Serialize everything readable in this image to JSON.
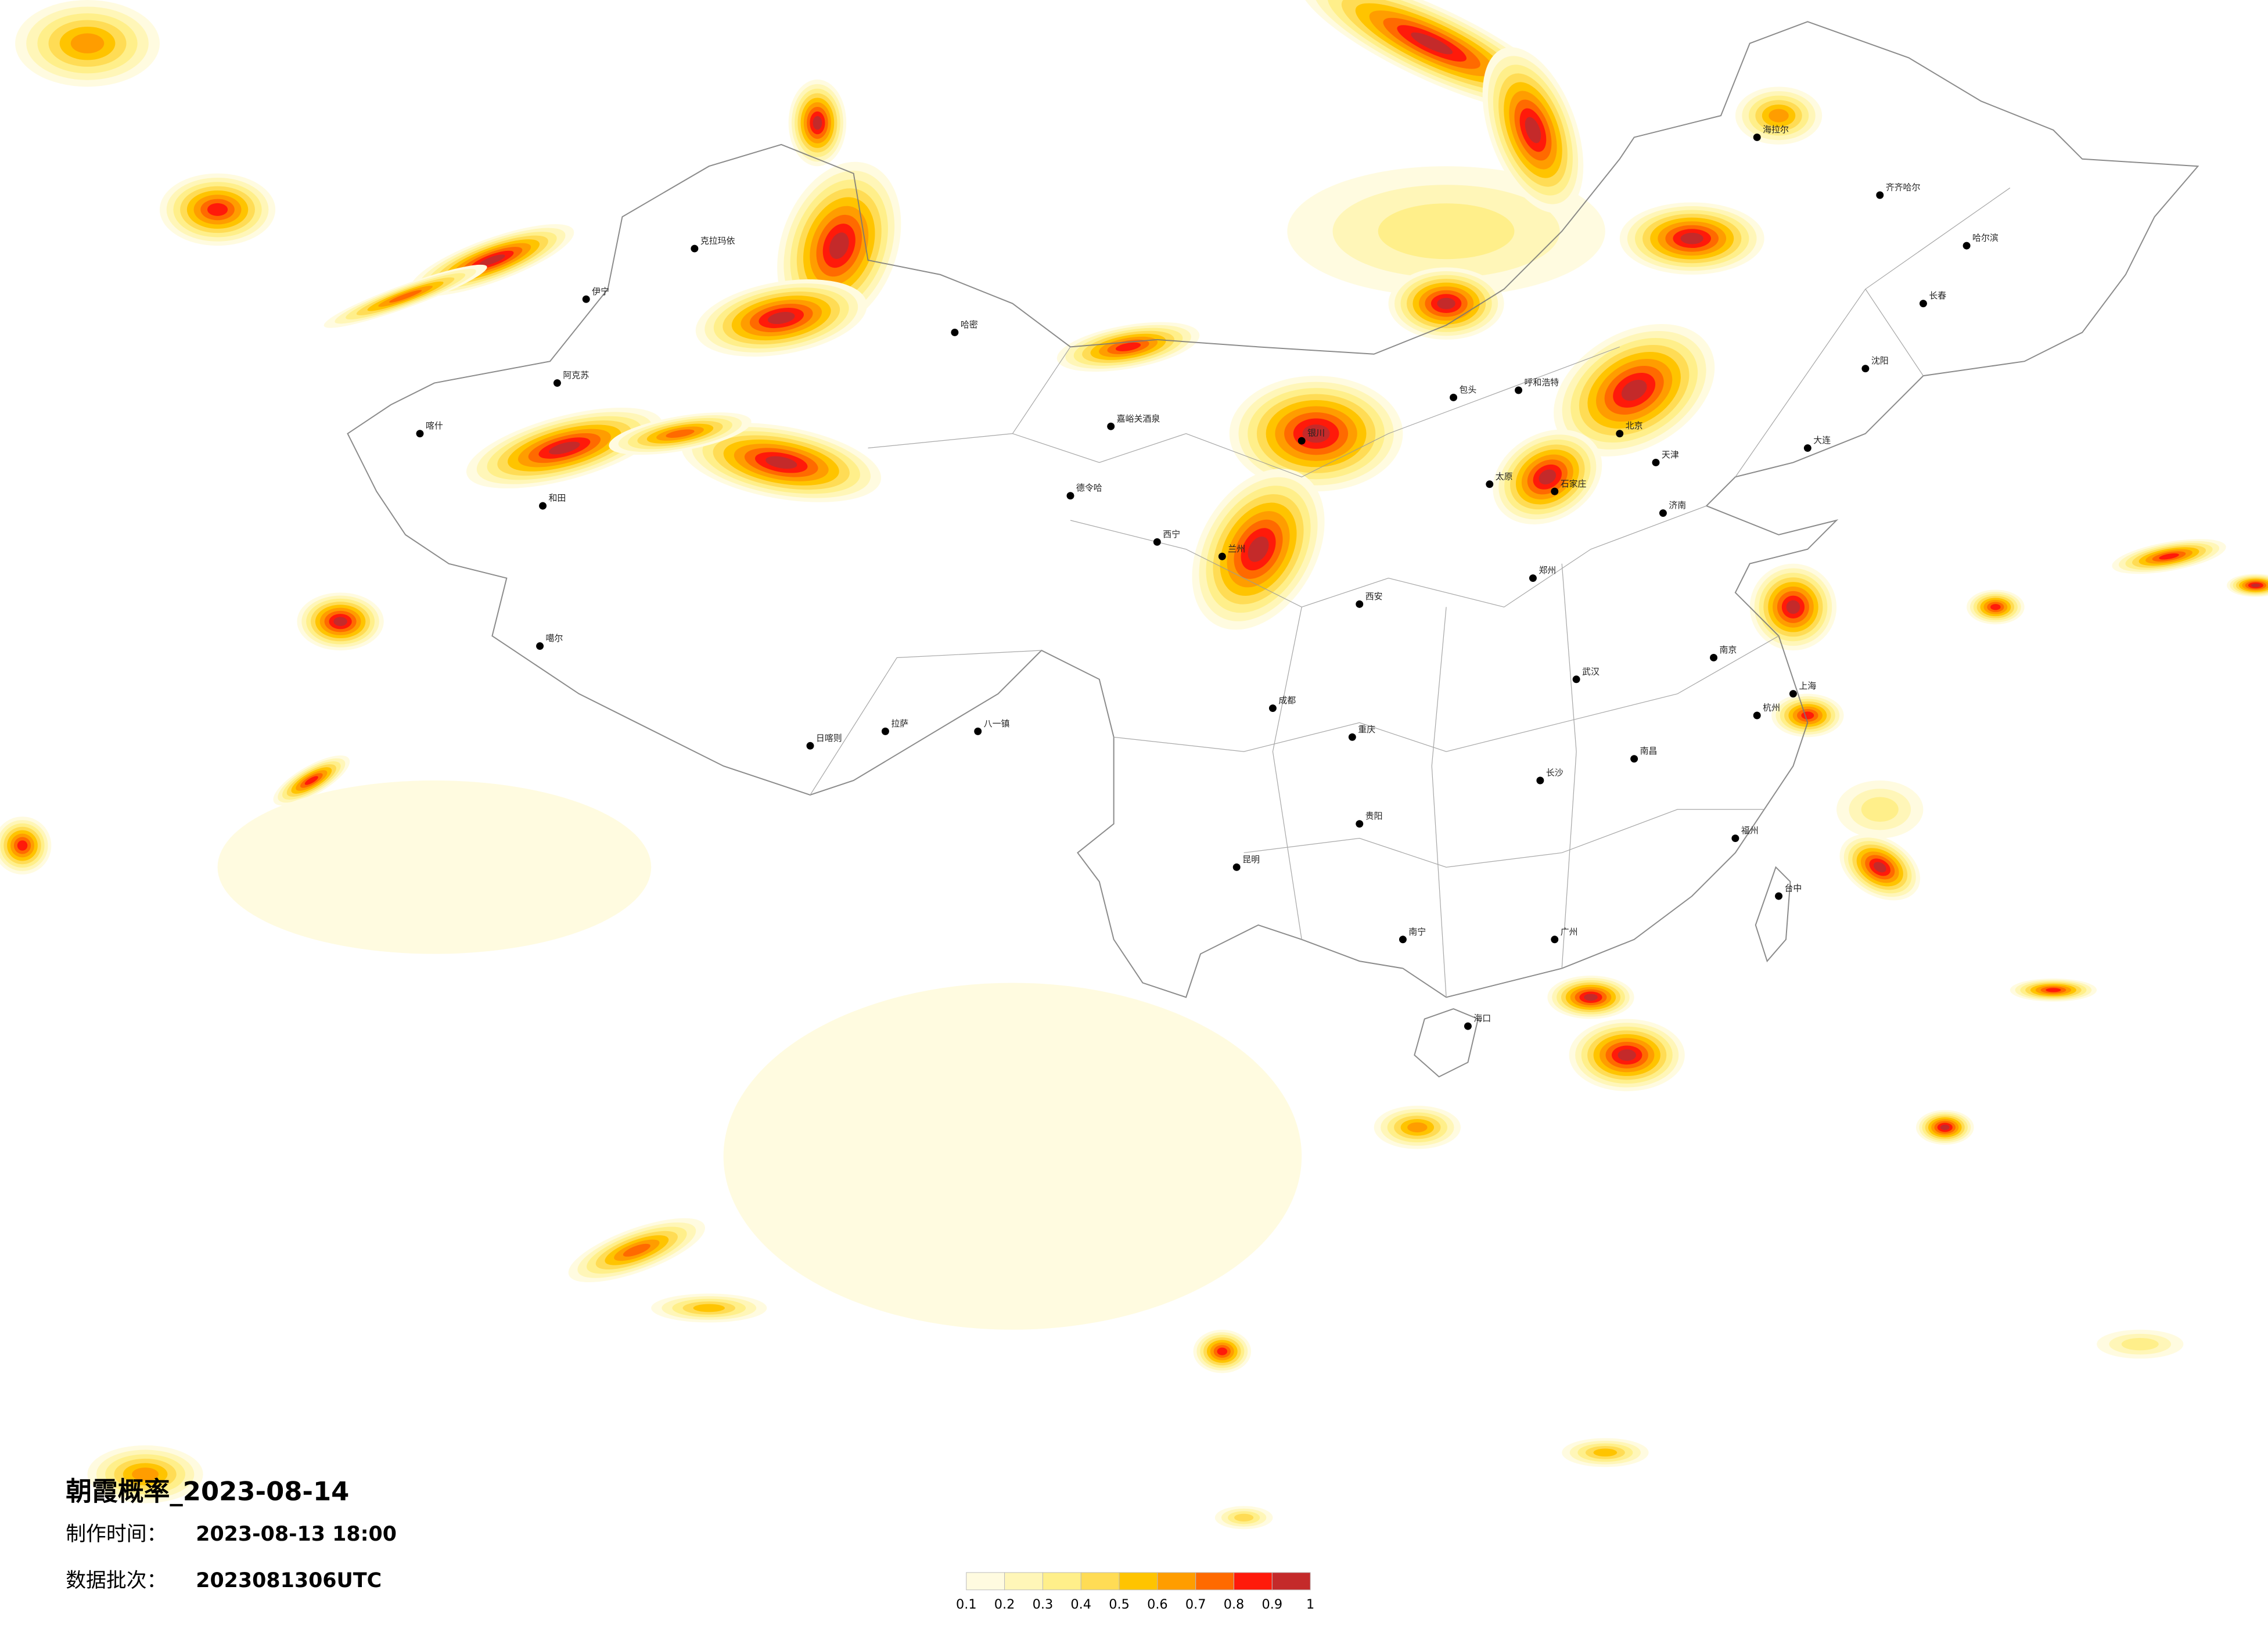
{
  "title": "朝霞概率_2023-08-14",
  "production_time": {
    "label": "制作时间：",
    "value": "2023-08-13 18:00"
  },
  "data_batch": {
    "label": "数据批次：",
    "value": "2023081306UTC"
  },
  "legend": {
    "colors": [
      "#fffbe0",
      "#fff6b8",
      "#ffef8a",
      "#ffdc55",
      "#ffc400",
      "#ff9d00",
      "#ff6a00",
      "#ff1a0a",
      "#c42a2a"
    ],
    "ticks": [
      0.1,
      0.2,
      0.3,
      0.4,
      0.5,
      0.6,
      0.7,
      0.8,
      0.9,
      1
    ]
  },
  "cities": [
    "喀什",
    "和田",
    "伊宁",
    "阿克苏",
    "克拉玛依",
    "哈密",
    "噶尔",
    "日喀则",
    "拉萨",
    "八一镇",
    "德令哈",
    "嘉峪关酒泉",
    "西宁",
    "兰州",
    "银川",
    "呼和浩特",
    "包头",
    "北京",
    "天津",
    "石家庄",
    "太原",
    "西安",
    "郑州",
    "济南",
    "南京",
    "上海",
    "杭州",
    "武汉",
    "长沙",
    "南昌",
    "福州",
    "广州",
    "南宁",
    "贵阳",
    "昆明",
    "成都",
    "重庆",
    "海口",
    "台中",
    "哈尔滨",
    "长春",
    "沈阳",
    "大连",
    "齐齐哈尔",
    "海拉尔"
  ]
}
